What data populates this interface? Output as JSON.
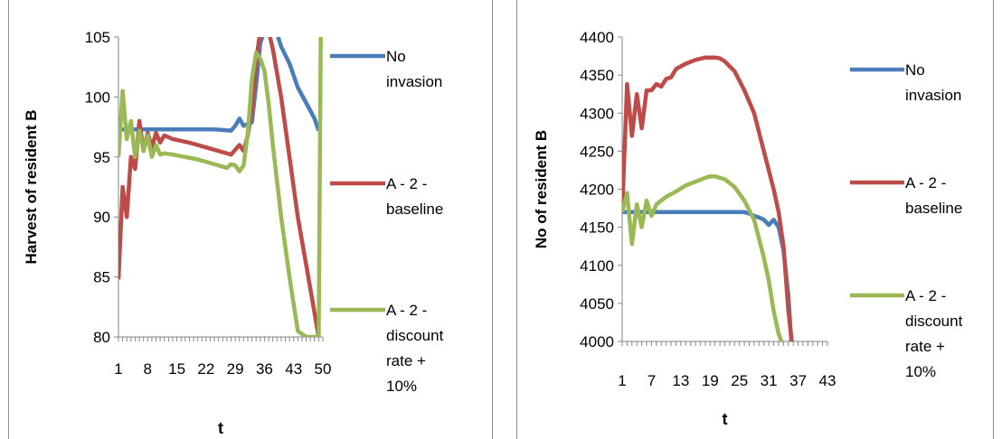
{
  "chart_data": [
    {
      "type": "line",
      "title": "",
      "xlabel": "t",
      "ylabel": "Harvest of resident B",
      "ylim": [
        80,
        105
      ],
      "yticks": [
        80,
        85,
        90,
        95,
        100,
        105
      ],
      "x_tick_labels": [
        "1",
        "8",
        "15",
        "22",
        "29",
        "36",
        "43",
        "50"
      ],
      "x_range": [
        1,
        50
      ],
      "grid": false,
      "legend_position": "right",
      "series": [
        {
          "name": "No invasion",
          "color": "#4a7ebb",
          "x": [
            1,
            3,
            5,
            8,
            12,
            16,
            20,
            24,
            28,
            29,
            30,
            31,
            33,
            34,
            35,
            36,
            37,
            38,
            39,
            40,
            42,
            44,
            46,
            48,
            49
          ],
          "y": [
            97.3,
            97.3,
            97.3,
            97.3,
            97.3,
            97.3,
            97.3,
            97.3,
            97.2,
            97.6,
            98.2,
            97.6,
            97.9,
            101,
            104.5,
            105.5,
            105.5,
            105.5,
            105.3,
            104.2,
            102.8,
            100.8,
            99.5,
            98.2,
            97.2
          ]
        },
        {
          "name": "A - 2 - baseline",
          "color": "#be4b48",
          "x": [
            1,
            2,
            3,
            4,
            5,
            6,
            7,
            8,
            9,
            10,
            11,
            12,
            14,
            18,
            22,
            26,
            28,
            29,
            30,
            31,
            32,
            33,
            34,
            35,
            36,
            37,
            38,
            40,
            42,
            44,
            46,
            48,
            49
          ],
          "y": [
            84.8,
            92.5,
            90,
            95,
            94,
            98,
            95.5,
            97,
            95.8,
            97,
            96.2,
            96.8,
            96.5,
            96.2,
            95.8,
            95.4,
            95.2,
            95.6,
            96,
            95.5,
            96.8,
            99,
            103,
            105.5,
            105.5,
            105.5,
            104,
            100,
            95,
            90,
            86,
            82,
            80
          ]
        },
        {
          "name": "A - 2 - discount rate + 10%",
          "color": "#98b954",
          "x": [
            1,
            2,
            3,
            4,
            5,
            6,
            7,
            8,
            9,
            10,
            11,
            12,
            14,
            17,
            20,
            24,
            27,
            28,
            29,
            30,
            31,
            32,
            33,
            34,
            35,
            36,
            37,
            38,
            40,
            42,
            44,
            46,
            47,
            48,
            49,
            49.5
          ],
          "y": [
            95,
            100.5,
            96.5,
            98,
            95,
            97.2,
            95.5,
            96.8,
            95,
            96,
            95.2,
            95.3,
            95.2,
            95,
            94.8,
            94.4,
            94.1,
            94.4,
            94.3,
            93.8,
            94.3,
            97,
            101.5,
            103.7,
            103.2,
            102.2,
            99.5,
            96,
            90,
            85,
            80.5,
            80,
            80,
            80,
            80,
            105.5
          ]
        }
      ]
    },
    {
      "type": "line",
      "title": "",
      "xlabel": "t",
      "ylabel": "No of resident B",
      "ylim": [
        4000,
        4400
      ],
      "yticks": [
        4000,
        4050,
        4100,
        4150,
        4200,
        4250,
        4300,
        4350,
        4400
      ],
      "x_tick_labels": [
        "1",
        "7",
        "13",
        "19",
        "25",
        "31",
        "37",
        "43"
      ],
      "x_range": [
        1,
        43
      ],
      "grid": false,
      "legend_position": "right",
      "series": [
        {
          "name": "No invasion",
          "color": "#4a7ebb",
          "x": [
            1,
            3,
            5,
            8,
            12,
            16,
            20,
            24,
            26,
            27,
            28,
            29,
            30,
            31,
            32,
            33,
            34,
            35,
            35.6
          ],
          "y": [
            4170,
            4170,
            4170,
            4170,
            4170,
            4170,
            4170,
            4170,
            4170,
            4168,
            4165,
            4163,
            4160,
            4153,
            4160,
            4150,
            4120,
            4060,
            4000
          ]
        },
        {
          "name": "A - 2 - baseline",
          "color": "#be4b48",
          "x": [
            1,
            2,
            3,
            4,
            5,
            6,
            7,
            8,
            9,
            10,
            11,
            12,
            14,
            16,
            18,
            19,
            20,
            21,
            22,
            24,
            26,
            28,
            30,
            31,
            32,
            33,
            34,
            35,
            35.7
          ],
          "y": [
            4170,
            4338,
            4270,
            4325,
            4280,
            4330,
            4330,
            4338,
            4335,
            4345,
            4347,
            4358,
            4365,
            4370,
            4373,
            4373,
            4373,
            4372,
            4368,
            4355,
            4330,
            4300,
            4250,
            4225,
            4200,
            4170,
            4125,
            4040,
            4000
          ]
        },
        {
          "name": "A - 2 - discount rate + 10%",
          "color": "#98b954",
          "x": [
            1,
            2,
            3,
            4,
            5,
            6,
            7,
            8,
            10,
            12,
            14,
            16,
            18,
            19,
            20,
            21,
            22,
            24,
            26,
            28,
            30,
            31,
            32,
            33,
            33.6
          ],
          "y": [
            4170,
            4195,
            4128,
            4180,
            4150,
            4185,
            4165,
            4180,
            4190,
            4197,
            4205,
            4210,
            4215,
            4217,
            4217,
            4215,
            4213,
            4203,
            4185,
            4160,
            4110,
            4080,
            4040,
            4010,
            4000
          ]
        }
      ]
    }
  ],
  "legend_lines": [
    [
      "No",
      "invasion"
    ],
    [
      "A - 2 -",
      "baseline"
    ],
    [
      "A - 2 -",
      "discount",
      "rate +",
      "10%"
    ]
  ]
}
